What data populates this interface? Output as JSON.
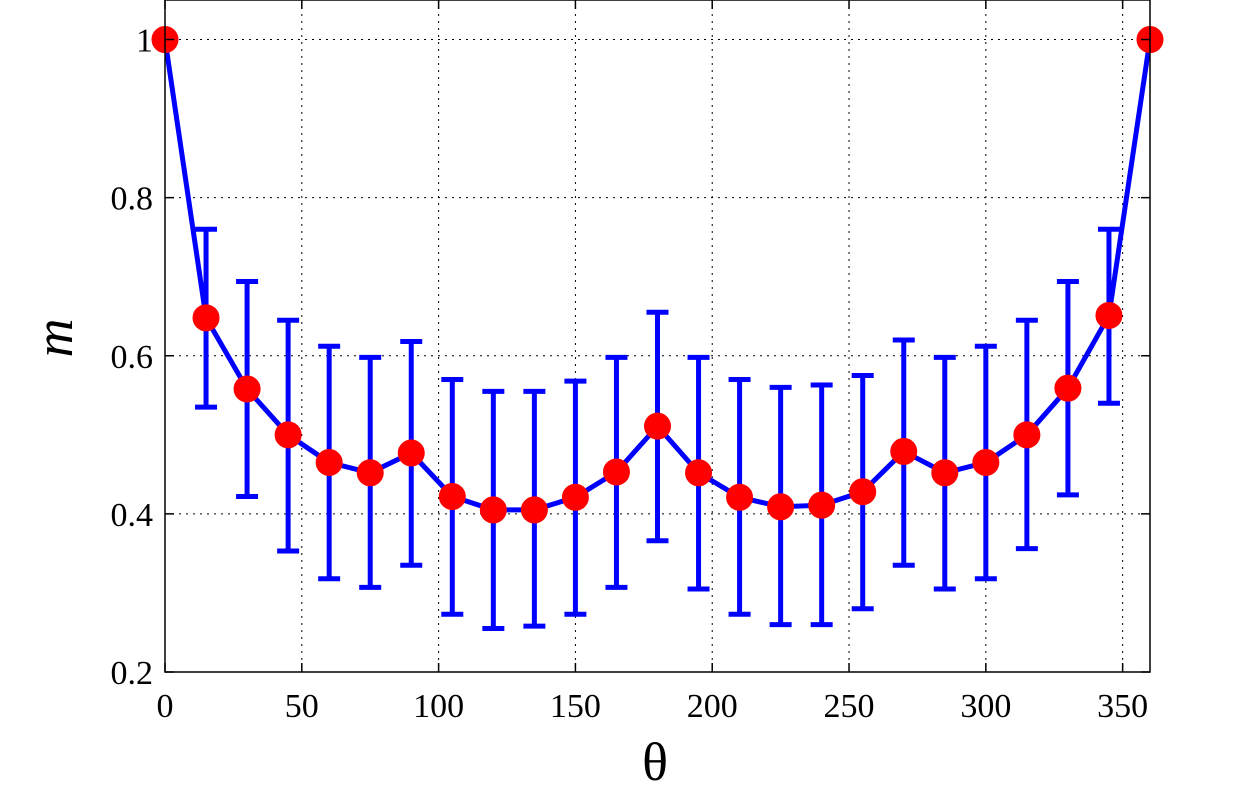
{
  "chart_data": {
    "type": "line",
    "title": "",
    "xlabel": "θ",
    "ylabel": "m",
    "xlim": [
      0,
      360
    ],
    "ylim": [
      0.2,
      1.05
    ],
    "grid": true,
    "x_ticks": [
      0,
      50,
      100,
      150,
      200,
      250,
      300,
      350
    ],
    "y_ticks": [
      0.2,
      0.4,
      0.6,
      0.8,
      1
    ],
    "x_tick_labels": [
      "0",
      "50",
      "100",
      "150",
      "200",
      "250",
      "300",
      "350"
    ],
    "y_tick_labels": [
      "0.2",
      "0.4",
      "0.6",
      "0.8",
      "1"
    ],
    "series": [
      {
        "line_color": "#0000ff",
        "marker_color": "#ff0000",
        "x": [
          0,
          15,
          30,
          45,
          60,
          75,
          90,
          105,
          120,
          135,
          150,
          165,
          180,
          195,
          210,
          225,
          240,
          255,
          270,
          285,
          300,
          315,
          330,
          345,
          360
        ],
        "y": [
          1.0,
          0.648,
          0.558,
          0.5,
          0.465,
          0.452,
          0.477,
          0.422,
          0.405,
          0.405,
          0.421,
          0.453,
          0.511,
          0.452,
          0.421,
          0.409,
          0.411,
          0.428,
          0.479,
          0.452,
          0.465,
          0.5,
          0.559,
          0.651,
          1.0
        ],
        "err_low": [
          null,
          0.535,
          0.422,
          0.353,
          0.318,
          0.307,
          0.335,
          0.273,
          0.255,
          0.258,
          0.273,
          0.307,
          0.366,
          0.305,
          0.273,
          0.26,
          0.26,
          0.28,
          0.335,
          0.305,
          0.318,
          0.356,
          0.424,
          0.54,
          null
        ],
        "err_high": [
          null,
          0.76,
          0.694,
          0.645,
          0.612,
          0.598,
          0.618,
          0.57,
          0.555,
          0.555,
          0.568,
          0.598,
          0.655,
          0.598,
          0.57,
          0.56,
          0.563,
          0.575,
          0.62,
          0.598,
          0.612,
          0.645,
          0.694,
          0.76,
          null
        ]
      }
    ]
  }
}
